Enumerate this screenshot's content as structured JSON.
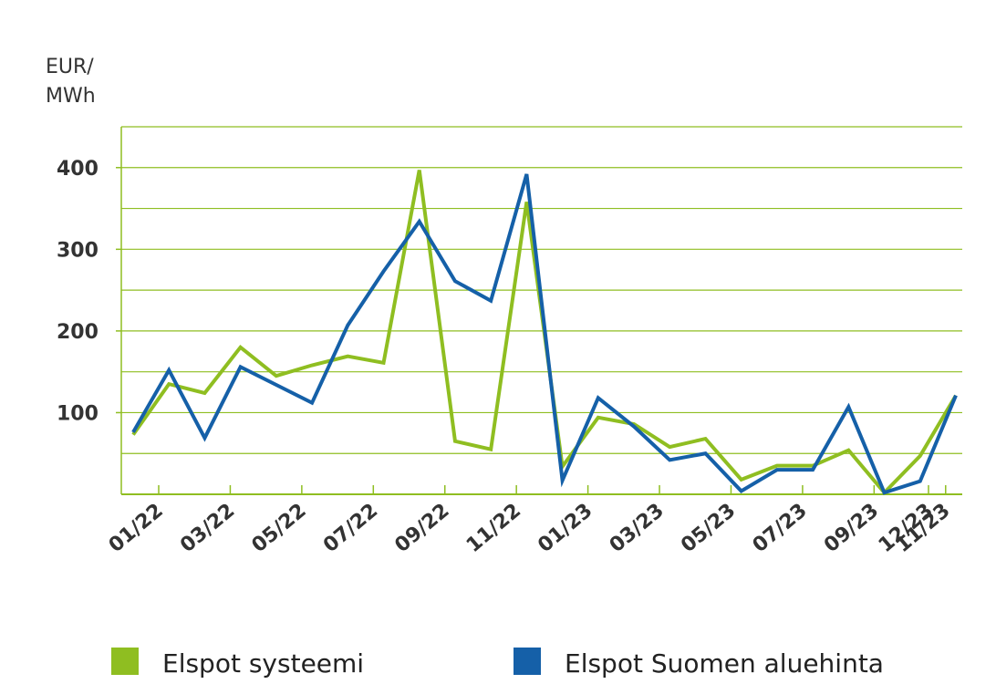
{
  "chart_data": {
    "type": "line",
    "y_label": "EUR/\nMWh",
    "categories": [
      "01/22",
      null,
      "03/22",
      null,
      "05/22",
      null,
      "07/22",
      null,
      "09/22",
      null,
      "11/22",
      null,
      "01/23",
      null,
      "03/23",
      null,
      "05/23",
      null,
      "07/23",
      null,
      "09/23",
      null,
      "11/23",
      "12/23"
    ],
    "series": [
      {
        "name": "Elspot systeemi",
        "color": "#8fbe21",
        "values": [
          73,
          135,
          124,
          180,
          145,
          158,
          169,
          161,
          397,
          65,
          55,
          358,
          34,
          94,
          86,
          58,
          68,
          18,
          35,
          35,
          54,
          2,
          47,
          121
        ]
      },
      {
        "name": "Elspot Suomen aluehinta",
        "color": "#1560a8",
        "values": [
          76,
          152,
          69,
          156,
          134,
          112,
          207,
          273,
          334,
          261,
          237,
          392,
          17,
          118,
          83,
          42,
          50,
          4,
          30,
          30,
          107,
          2,
          16,
          121
        ]
      }
    ],
    "ylim": [
      0,
      450
    ],
    "yticks": [
      100,
      200,
      300,
      400
    ],
    "ygrid": [
      50,
      100,
      150,
      200,
      250,
      300,
      350,
      400,
      450
    ],
    "grid": true,
    "grid_color": "#8fbe21",
    "legend": "bottom"
  }
}
